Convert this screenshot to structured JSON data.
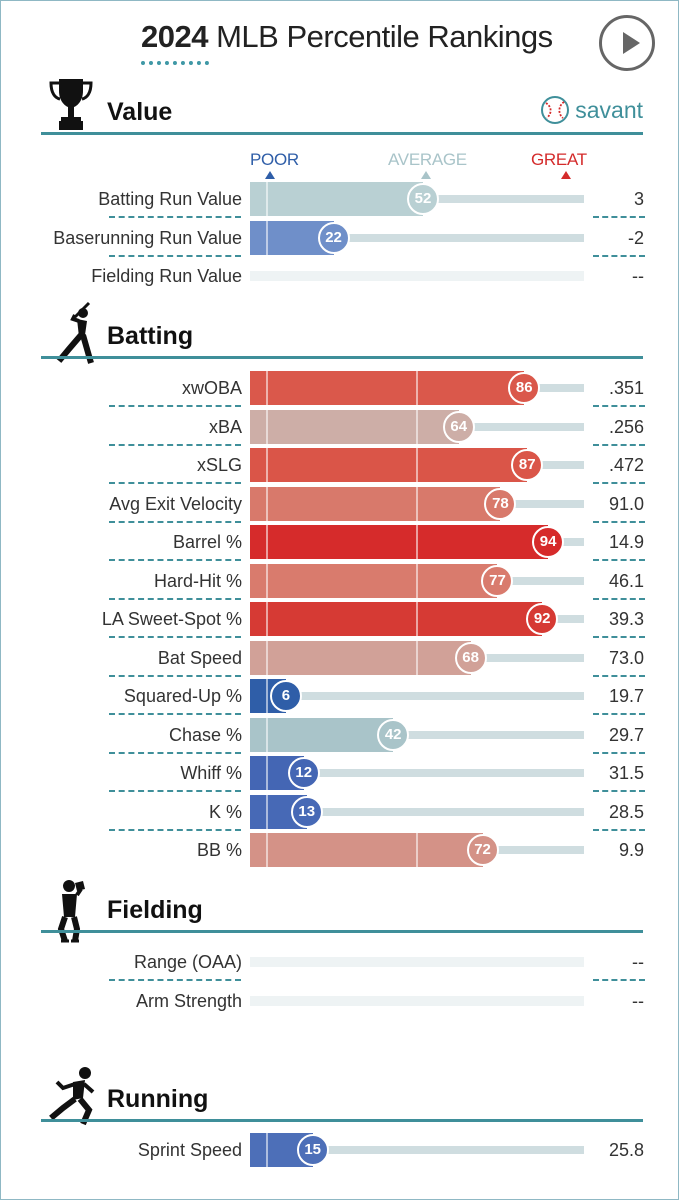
{
  "header": {
    "year": "2024",
    "title_rest": "MLB Percentile Rankings"
  },
  "scale": {
    "poor": "POOR",
    "average": "AVERAGE",
    "great": "GREAT",
    "poor_color": "#2f5ea8",
    "average_color": "#a9c4c9",
    "great_color": "#d42b2b"
  },
  "brand": {
    "name": "savant"
  },
  "sections": [
    {
      "id": "value",
      "title": "Value",
      "icon": "trophy-icon",
      "rows": [
        {
          "label": "Batting Run Value",
          "percentile": 52,
          "value": "3",
          "color": "#b9d0d3"
        },
        {
          "label": "Baserunning Run Value",
          "percentile": 22,
          "value": "-2",
          "color": "#6f8fc9"
        },
        {
          "label": "Fielding Run Value",
          "percentile": null,
          "value": "--",
          "color": ""
        }
      ]
    },
    {
      "id": "batting",
      "title": "Batting",
      "icon": "batter-icon",
      "rows": [
        {
          "label": "xwOBA",
          "percentile": 86,
          "value": ".351",
          "color": "#da584b"
        },
        {
          "label": "xBA",
          "percentile": 64,
          "value": ".256",
          "color": "#cdaea7"
        },
        {
          "label": "xSLG",
          "percentile": 87,
          "value": ".472",
          "color": "#da5548"
        },
        {
          "label": "Avg Exit Velocity",
          "percentile": 78,
          "value": "91.0",
          "color": "#d8796b"
        },
        {
          "label": "Barrel %",
          "percentile": 94,
          "value": "14.9",
          "color": "#d62b2b"
        },
        {
          "label": "Hard-Hit %",
          "percentile": 77,
          "value": "46.1",
          "color": "#d97b6d"
        },
        {
          "label": "LA Sweet-Spot %",
          "percentile": 92,
          "value": "39.3",
          "color": "#d63a34"
        },
        {
          "label": "Bat Speed",
          "percentile": 68,
          "value": "73.0",
          "color": "#d1a198"
        },
        {
          "label": "Squared-Up %",
          "percentile": 6,
          "value": "19.7",
          "color": "#2f5ea8"
        },
        {
          "label": "Chase %",
          "percentile": 42,
          "value": "29.7",
          "color": "#a9c4c9"
        },
        {
          "label": "Whiff %",
          "percentile": 12,
          "value": "31.5",
          "color": "#4466b4"
        },
        {
          "label": "K %",
          "percentile": 13,
          "value": "28.5",
          "color": "#4769b6"
        },
        {
          "label": "BB %",
          "percentile": 72,
          "value": "9.9",
          "color": "#d49287"
        }
      ]
    },
    {
      "id": "fielding",
      "title": "Fielding",
      "icon": "fielder-icon",
      "rows": [
        {
          "label": "Range (OAA)",
          "percentile": null,
          "value": "--",
          "color": ""
        },
        {
          "label": "Arm Strength",
          "percentile": null,
          "value": "--",
          "color": ""
        }
      ]
    },
    {
      "id": "running",
      "title": "Running",
      "icon": "runner-icon",
      "rows": [
        {
          "label": "Sprint Speed",
          "percentile": 15,
          "value": "25.8",
          "color": "#4d6fb8"
        }
      ]
    }
  ]
}
